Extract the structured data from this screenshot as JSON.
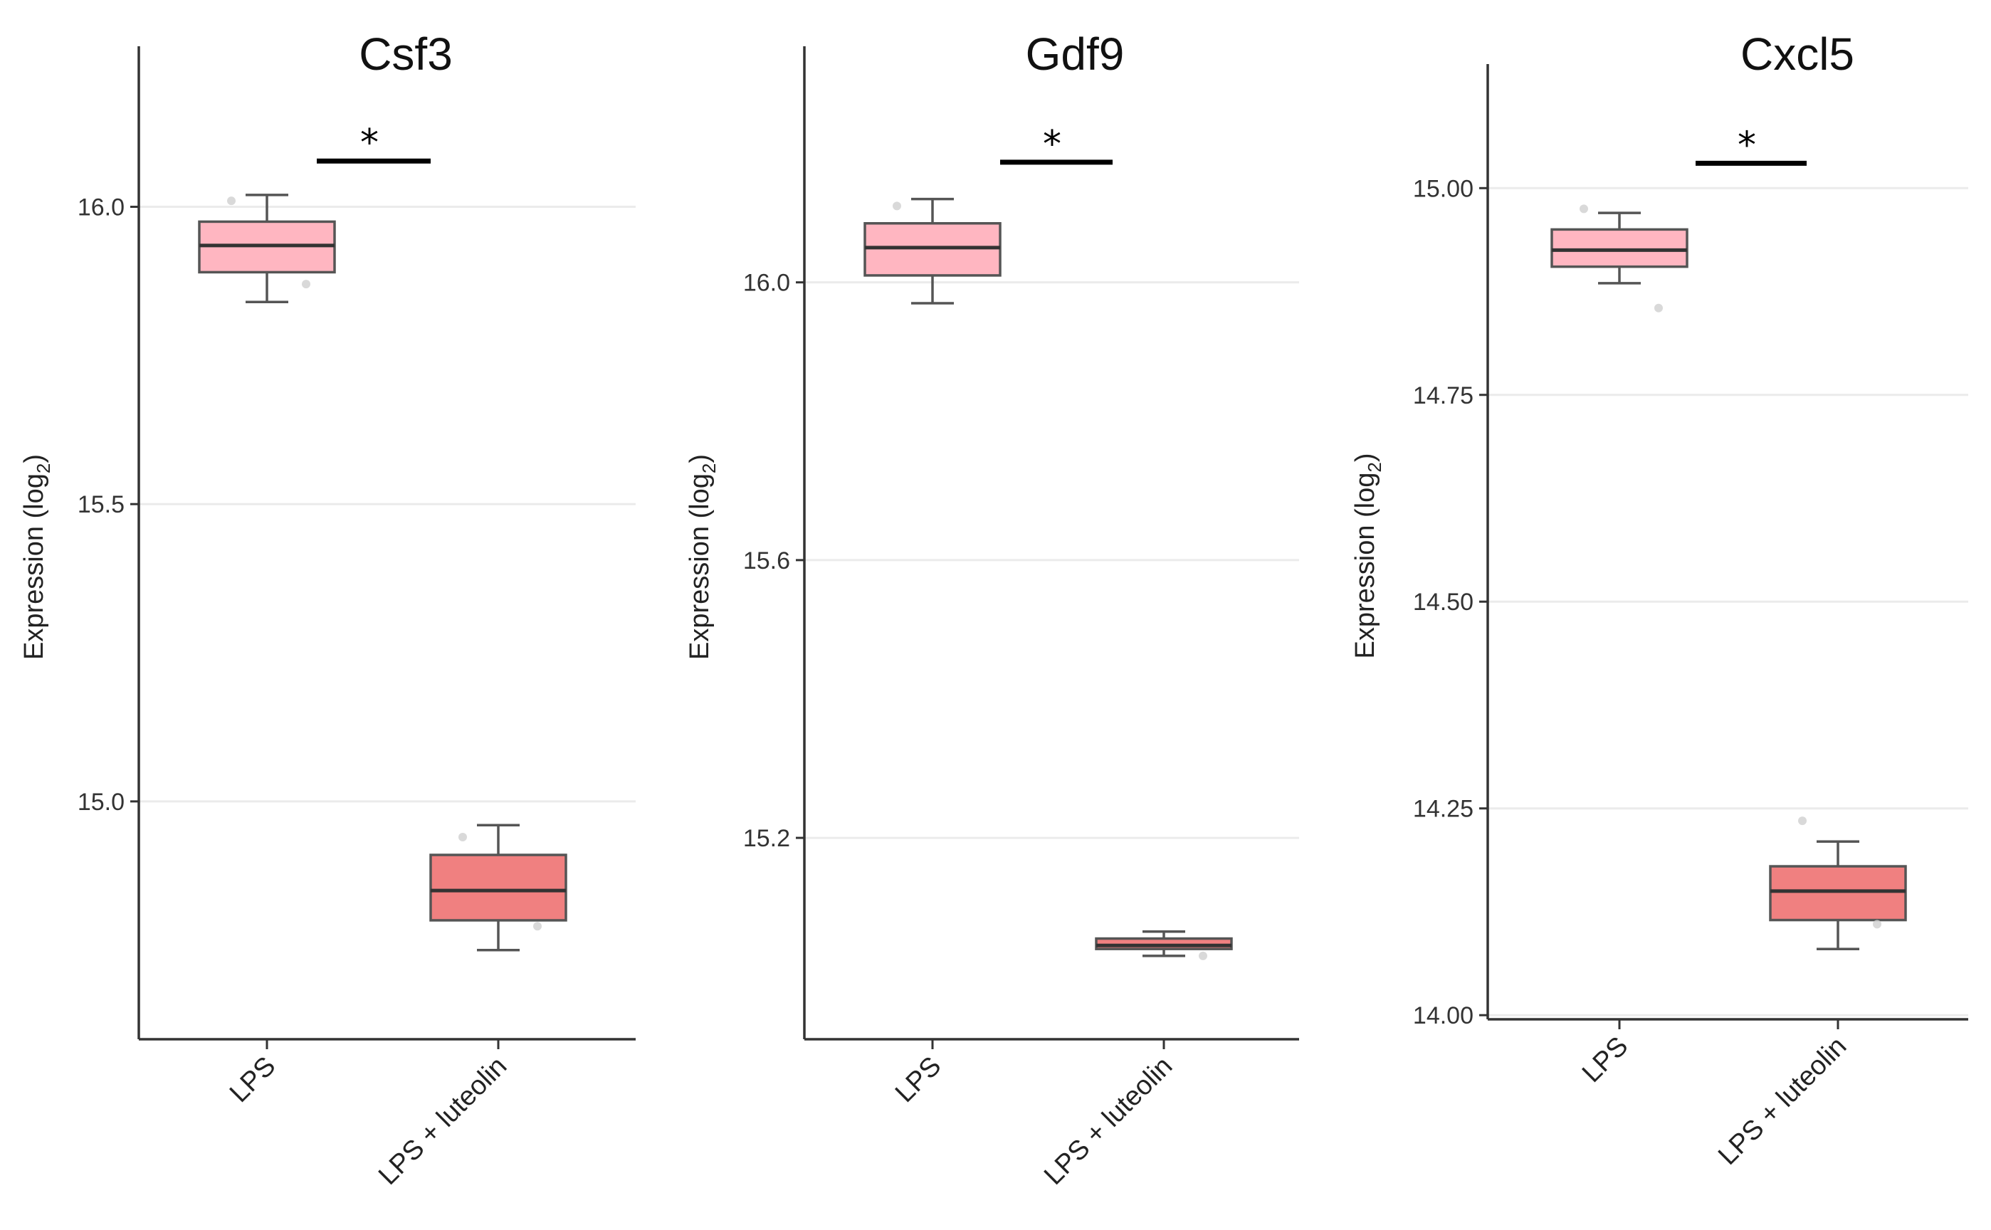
{
  "chart_data": [
    {
      "type": "box",
      "title": "Csf3",
      "ylabel": "Expression (log",
      "ylabel_sub": "2",
      "ylabel_close": ")",
      "ylim": [
        14.6,
        16.27
      ],
      "yticks": [
        15.0,
        15.5,
        16.0
      ],
      "ytick_labels": [
        "15.0",
        "15.5",
        "16.0"
      ],
      "categories": [
        "LPS",
        "LPS + luteolin"
      ],
      "colors": [
        "#FFB6C1",
        "#F08080"
      ],
      "boxes": [
        {
          "category": "LPS",
          "whisker_low": 15.84,
          "q1": 15.89,
          "median": 15.935,
          "q3": 15.975,
          "whisker_high": 16.02
        },
        {
          "category": "LPS + luteolin",
          "whisker_low": 14.75,
          "q1": 14.8,
          "median": 14.85,
          "q3": 14.91,
          "whisker_high": 14.96
        }
      ],
      "points": [
        [
          0,
          16.01
        ],
        [
          0,
          15.87
        ],
        [
          1,
          14.94
        ],
        [
          1,
          14.79
        ]
      ],
      "significance": {
        "y": 16.077,
        "label": "*"
      }
    },
    {
      "type": "box",
      "title": "Gdf9",
      "ylabel": "Expression (log",
      "ylabel_sub": "2",
      "ylabel_close": ")",
      "ylim": [
        14.91,
        16.34
      ],
      "yticks": [
        15.2,
        15.6,
        16.0
      ],
      "ytick_labels": [
        "15.2",
        "15.6",
        "16.0"
      ],
      "categories": [
        "LPS",
        "LPS + luteolin"
      ],
      "colors": [
        "#FFB6C1",
        "#F08080"
      ],
      "boxes": [
        {
          "category": "LPS",
          "whisker_low": 15.97,
          "q1": 16.01,
          "median": 16.05,
          "q3": 16.085,
          "whisker_high": 16.12
        },
        {
          "category": "LPS + luteolin",
          "whisker_low": 15.03,
          "q1": 15.04,
          "median": 15.045,
          "q3": 15.055,
          "whisker_high": 15.065
        }
      ],
      "points": [
        [
          0,
          16.11
        ],
        [
          1,
          15.03
        ]
      ],
      "significance": {
        "y": 16.173,
        "label": "*"
      }
    },
    {
      "type": "box",
      "title": "Cxcl5",
      "ylabel": "Expression (log",
      "ylabel_sub": "2",
      "ylabel_close": ")",
      "ylim": [
        13.995,
        15.15
      ],
      "yticks": [
        14.0,
        14.25,
        14.5,
        14.75,
        15.0
      ],
      "ytick_labels": [
        "14.00",
        "14.25",
        "14.50",
        "14.75",
        "15.00"
      ],
      "categories": [
        "LPS",
        "LPS + luteolin"
      ],
      "colors": [
        "#FFB6C1",
        "#F08080"
      ],
      "boxes": [
        {
          "category": "LPS",
          "whisker_low": 14.885,
          "q1": 14.905,
          "median": 14.925,
          "q3": 14.95,
          "whisker_high": 14.97
        },
        {
          "category": "LPS + luteolin",
          "whisker_low": 14.08,
          "q1": 14.115,
          "median": 14.15,
          "q3": 14.18,
          "whisker_high": 14.21
        }
      ],
      "points": [
        [
          0,
          14.975
        ],
        [
          0,
          14.855
        ],
        [
          1,
          14.235
        ],
        [
          1,
          14.11
        ]
      ],
      "significance": {
        "y": 15.03,
        "label": "*"
      }
    }
  ]
}
